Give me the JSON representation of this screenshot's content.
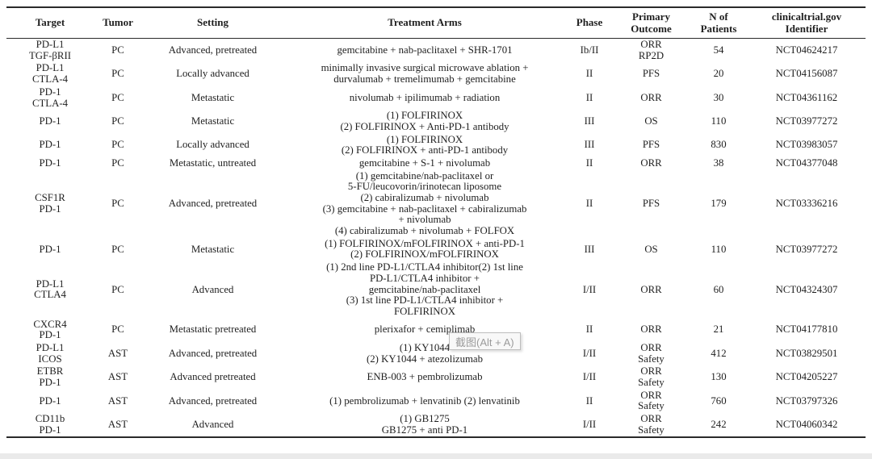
{
  "tooltip": {
    "text": "截图(Alt + A)"
  },
  "table": {
    "headers": [
      "Target",
      "Tumor",
      "Setting",
      "Treatment Arms",
      "Phase",
      "Primary\nOutcome",
      "N of\nPatients",
      "clinicaltrial.gov\nIdentifier"
    ],
    "rows": [
      {
        "target": "PD-L1\nTGF-βRII",
        "tumor": "PC",
        "setting": "Advanced, pretreated",
        "arms": "gemcitabine + nab-paclitaxel + SHR-1701",
        "phase": "Ib/II",
        "outcome": "ORR\nRP2D",
        "n": "54",
        "nct": "NCT04624217"
      },
      {
        "target": "PD-L1\nCTLA-4",
        "tumor": "PC",
        "setting": "Locally advanced",
        "arms": "minimally invasive surgical microwave ablation +\ndurvalumab + tremelimumab + gemcitabine",
        "phase": "II",
        "outcome": "PFS",
        "n": "20",
        "nct": "NCT04156087"
      },
      {
        "target": "PD-1\nCTLA-4",
        "tumor": "PC",
        "setting": "Metastatic",
        "arms": "nivolumab + ipilimumab + radiation",
        "phase": "II",
        "outcome": "ORR",
        "n": "30",
        "nct": "NCT04361162"
      },
      {
        "target": "PD-1",
        "tumor": "PC",
        "setting": "Metastatic",
        "arms": "(1) FOLFIRINOX\n(2) FOLFIRINOX + Anti-PD-1 antibody",
        "phase": "III",
        "outcome": "OS",
        "n": "110",
        "nct": "NCT03977272"
      },
      {
        "target": "PD-1",
        "tumor": "PC",
        "setting": "Locally advanced",
        "arms": "(1) FOLFIRINOX\n(2) FOLFIRINOX + anti-PD-1 antibody",
        "phase": "III",
        "outcome": "PFS",
        "n": "830",
        "nct": "NCT03983057"
      },
      {
        "target": "PD-1",
        "tumor": "PC",
        "setting": "Metastatic, untreated",
        "arms": "gemcitabine + S-1 + nivolumab",
        "phase": "II",
        "outcome": "ORR",
        "n": "38",
        "nct": "NCT04377048"
      },
      {
        "target": "CSF1R\nPD-1",
        "tumor": "PC",
        "setting": "Advanced, pretreated",
        "arms": "(1) gemcitabine/nab-paclitaxel or\n5-FU/leucovorin/irinotecan liposome\n(2) cabiralizumab + nivolumab\n(3) gemcitabine + nab-paclitaxel + cabiralizumab\n+ nivolumab\n(4) cabiralizumab + nivolumab + FOLFOX",
        "phase": "II",
        "outcome": "PFS",
        "n": "179",
        "nct": "NCT03336216"
      },
      {
        "target": "PD-1",
        "tumor": "PC",
        "setting": "Metastatic",
        "arms": "(1) FOLFIRINOX/mFOLFIRINOX + anti-PD-1\n(2) FOLFIRINOX/mFOLFIRINOX",
        "phase": "III",
        "outcome": "OS",
        "n": "110",
        "nct": "NCT03977272"
      },
      {
        "target": "PD-L1\nCTLA4",
        "tumor": "PC",
        "setting": "Advanced",
        "arms": "(1) 2nd line PD-L1/CTLA4 inhibitor(2) 1st line\nPD-L1/CTLA4 inhibitor +\ngemcitabine/nab-paclitaxel\n(3) 1st line PD-L1/CTLA4 inhibitor +\nFOLFIRINOX",
        "phase": "I/II",
        "outcome": "ORR",
        "n": "60",
        "nct": "NCT04324307"
      },
      {
        "target": "CXCR4\nPD-1",
        "tumor": "PC",
        "setting": "Metastatic pretreated",
        "arms": "plerixafor + cemiplimab",
        "phase": "II",
        "outcome": "ORR",
        "n": "21",
        "nct": "NCT04177810"
      },
      {
        "target": "PD-L1\nICOS",
        "tumor": "AST",
        "setting": "Advanced, pretreated",
        "arms": "(1) KY1044\n(2) KY1044 + atezolizumab",
        "phase": "I/II",
        "outcome": "ORR\nSafety",
        "n": "412",
        "nct": "NCT03829501"
      },
      {
        "target": "ETBR\nPD-1",
        "tumor": "AST",
        "setting": "Advanced pretreated",
        "arms": "ENB-003 + pembrolizumab",
        "phase": "I/II",
        "outcome": "ORR\nSafety",
        "n": "130",
        "nct": "NCT04205227"
      },
      {
        "target": "PD-1",
        "tumor": "AST",
        "setting": "Advanced, pretreated",
        "arms": "(1) pembrolizumab + lenvatinib (2) lenvatinib",
        "phase": "II",
        "outcome": "ORR\nSafety",
        "n": "760",
        "nct": "NCT03797326"
      },
      {
        "target": "CD11b\nPD-1",
        "tumor": "AST",
        "setting": "Advanced",
        "arms": "(1) GB1275\nGB1275 + anti PD-1",
        "phase": "I/II",
        "outcome": "ORR\nSafety",
        "n": "242",
        "nct": "NCT04060342"
      }
    ]
  }
}
